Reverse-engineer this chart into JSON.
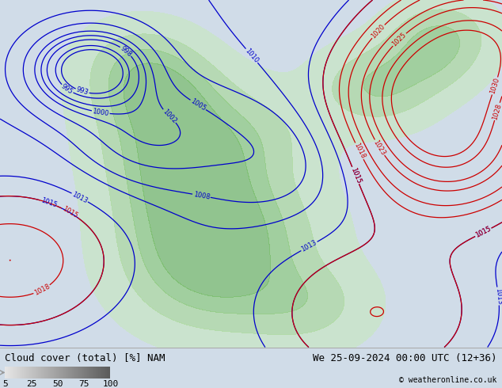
{
  "title_left": "Cloud cover (total) [%] NAM",
  "title_right": "We 25-09-2024 00:00 UTC (12+36)",
  "copyright": "© weatheronline.co.uk",
  "legend_labels": [
    "5",
    "25",
    "50",
    "75",
    "100"
  ],
  "bg_ocean": "#d0dce8",
  "bg_land": "#c8c8c8",
  "bottom_bg": "#f0f0f0",
  "font_size_title": 9,
  "font_size_legend": 8,
  "font_size_copyright": 7,
  "map_extent": [
    -175,
    -50,
    15,
    80
  ],
  "cloud_color_25": "#c8e8c0",
  "cloud_color_50": "#a8d898",
  "cloud_color_75": "#88c878",
  "cloud_color_100": "#70b860",
  "blue_line_color": "#0000cc",
  "red_line_color": "#cc0000"
}
